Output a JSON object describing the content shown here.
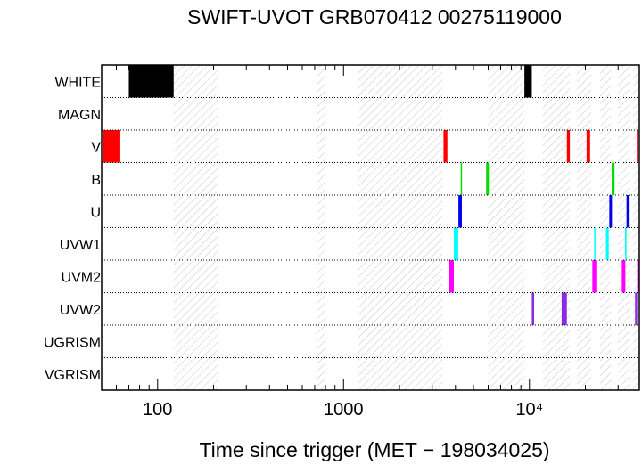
{
  "chart_data": {
    "type": "timeline",
    "title": "SWIFT-UVOT GRB070412 00275119000",
    "xlabel": "Time since trigger (MET − 198034025)",
    "xscale": "log",
    "xlim": [
      50,
      39000
    ],
    "x_tick_labels": [
      {
        "value": 100,
        "label": "100"
      },
      {
        "value": 1000,
        "label": "1000"
      },
      {
        "value": 10000,
        "label": "10⁴"
      }
    ],
    "filters": [
      "WHITE",
      "MAGN",
      "V",
      "B",
      "U",
      "UVW1",
      "UVM2",
      "UVW2",
      "UGRISM",
      "VGRISM"
    ],
    "filter_colors": {
      "WHITE": "#000000",
      "MAGN": "#000000",
      "V": "#ff0000",
      "B": "#00dd00",
      "U": "#0000ee",
      "UVW1": "#00ffff",
      "UVM2": "#ff00ff",
      "UVW2": "#8a2be2",
      "UGRISM": "#000000",
      "VGRISM": "#000000"
    },
    "hatched_intervals": [
      [
        122,
        210
      ],
      [
        720,
        800
      ],
      [
        1200,
        3400
      ],
      [
        6000,
        9400
      ],
      [
        11800,
        16500
      ],
      [
        18000,
        21500
      ],
      [
        24000,
        27500
      ],
      [
        30000,
        34500
      ],
      [
        36000,
        39000
      ]
    ],
    "exposures": [
      {
        "filter": "WHITE",
        "start": 70,
        "end": 122
      },
      {
        "filter": "WHITE",
        "start": 9400,
        "end": 10300
      },
      {
        "filter": "V",
        "start": 51,
        "end": 63
      },
      {
        "filter": "V",
        "start": 3450,
        "end": 3620
      },
      {
        "filter": "V",
        "start": 15900,
        "end": 16500
      },
      {
        "filter": "V",
        "start": 20300,
        "end": 21200
      },
      {
        "filter": "V",
        "start": 37800,
        "end": 38600
      },
      {
        "filter": "B",
        "start": 4270,
        "end": 4300
      },
      {
        "filter": "B",
        "start": 5850,
        "end": 6050
      },
      {
        "filter": "B",
        "start": 27700,
        "end": 28700
      },
      {
        "filter": "U",
        "start": 4150,
        "end": 4330
      },
      {
        "filter": "U",
        "start": 26900,
        "end": 27800
      },
      {
        "filter": "U",
        "start": 33300,
        "end": 34200
      },
      {
        "filter": "UVW1",
        "start": 3920,
        "end": 4140
      },
      {
        "filter": "UVW1",
        "start": 22300,
        "end": 22600
      },
      {
        "filter": "UVW1",
        "start": 25800,
        "end": 26700
      },
      {
        "filter": "UVW1",
        "start": 32700,
        "end": 33300
      },
      {
        "filter": "UVM2",
        "start": 3680,
        "end": 3920
      },
      {
        "filter": "UVM2",
        "start": 21800,
        "end": 22900
      },
      {
        "filter": "UVM2",
        "start": 31400,
        "end": 32800
      },
      {
        "filter": "UVM2",
        "start": 38000,
        "end": 38900
      },
      {
        "filter": "UVW2",
        "start": 10300,
        "end": 10600
      },
      {
        "filter": "UVW2",
        "start": 14900,
        "end": 15900
      },
      {
        "filter": "UVW2",
        "start": 37000,
        "end": 38000
      }
    ]
  }
}
